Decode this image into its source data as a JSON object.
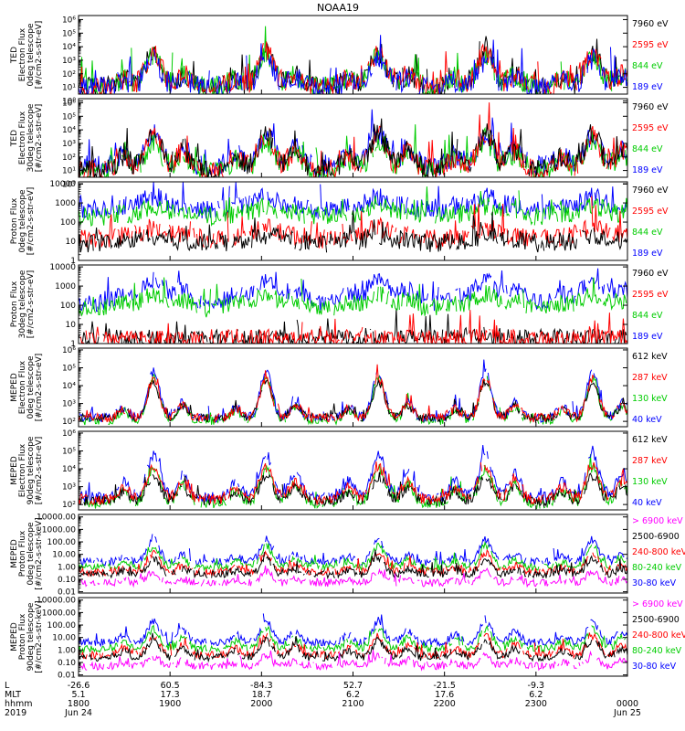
{
  "chart_data": {
    "title": "NOAA19",
    "type": "line",
    "x_range_hours": [
      18.0,
      24.0
    ],
    "footer": {
      "row_labels": [
        "L",
        "MLT",
        "hhmm",
        "2019"
      ],
      "ticks": [
        {
          "hour": 18.0,
          "L": "-26.6",
          "MLT": "5.1",
          "hhmm": "1800",
          "date": "Jun 24"
        },
        {
          "hour": 19.0,
          "L": "60.5",
          "MLT": "17.3",
          "hhmm": "1900",
          "date": ""
        },
        {
          "hour": 20.0,
          "L": "-84.3",
          "MLT": "18.7",
          "hhmm": "2000",
          "date": ""
        },
        {
          "hour": 21.0,
          "L": "52.7",
          "MLT": "6.2",
          "hhmm": "2100",
          "date": ""
        },
        {
          "hour": 22.0,
          "L": "-21.5",
          "MLT": "17.6",
          "hhmm": "2200",
          "date": ""
        },
        {
          "hour": 23.0,
          "L": "-9.3",
          "MLT": "6.2",
          "hhmm": "2300",
          "date": ""
        },
        {
          "hour": 24.0,
          "L": "",
          "MLT": "",
          "hhmm": "0000",
          "date": "Jun 25"
        }
      ]
    },
    "passes_hours": [
      18.82,
      20.05,
      21.28,
      22.45,
      23.62
    ],
    "panels": [
      {
        "ylabel": [
          "TED",
          "Electron Flux",
          "0deg telescope",
          "[#/cm2-s-str-eV]"
        ],
        "ylim_log": [
          0.5,
          6.3
        ],
        "yticks": [
          [
            "10⁰",
            0
          ],
          [
            "10¹",
            1
          ],
          [
            "10²",
            2
          ],
          [
            "10³",
            3
          ],
          [
            "10⁴",
            4
          ],
          [
            "10⁵",
            5
          ],
          [
            "10⁶",
            6
          ]
        ],
        "channels": [
          {
            "name": "7960 eV",
            "color": "#000000"
          },
          {
            "name": "2595 eV",
            "color": "#ff0000"
          },
          {
            "name": "844 eV",
            "color": "#00cc00"
          },
          {
            "name": "189 eV",
            "color": "#0000ff"
          }
        ],
        "draw_order": [
          0,
          2,
          1,
          3
        ],
        "bg": [
          1.0,
          1.0,
          1.1,
          1.0
        ],
        "peak": [
          2.6,
          2.7,
          2.2,
          2.0
        ],
        "width": 0.12,
        "noise": 0.8
      },
      {
        "ylabel": [
          "TED",
          "Electron Flux",
          "30deg telescope",
          "[#/cm2-s-str-eV]"
        ],
        "ylim_log": [
          0.5,
          6.3
        ],
        "yticks": [
          [
            "10⁰",
            0
          ],
          [
            "10¹",
            1
          ],
          [
            "10²",
            2
          ],
          [
            "10³",
            3
          ],
          [
            "10⁴",
            4
          ],
          [
            "10⁵",
            5
          ],
          [
            "10⁶",
            6
          ]
        ],
        "channels": [
          {
            "name": "7960 eV",
            "color": "#000000"
          },
          {
            "name": "2595 eV",
            "color": "#ff0000"
          },
          {
            "name": "844 eV",
            "color": "#00cc00"
          },
          {
            "name": "189 eV",
            "color": "#0000ff"
          }
        ],
        "draw_order": [
          3,
          2,
          1,
          0
        ],
        "bg": [
          1.0,
          1.0,
          1.0,
          1.3
        ],
        "peak": [
          2.8,
          2.7,
          2.2,
          2.4
        ],
        "width": 0.12,
        "noise": 0.8
      },
      {
        "ylabel": [
          "Proton Flux",
          "0deg telescope",
          "[#/cm2-s-str-eV]"
        ],
        "ylim_log": [
          0,
          4.1
        ],
        "yticks": [
          [
            "1",
            0
          ],
          [
            "10",
            1
          ],
          [
            "100",
            2
          ],
          [
            "1000",
            3
          ],
          [
            "10000",
            4
          ]
        ],
        "channels": [
          {
            "name": "7960 eV",
            "color": "#000000"
          },
          {
            "name": "2595 eV",
            "color": "#ff0000"
          },
          {
            "name": "844 eV",
            "color": "#00cc00"
          },
          {
            "name": "189 eV",
            "color": "#0000ff"
          }
        ],
        "draw_order": [
          3,
          2,
          1,
          0
        ],
        "bg": [
          0.9,
          1.1,
          2.3,
          2.6
        ],
        "peak": [
          0.4,
          0.6,
          0.5,
          0.7
        ],
        "width": 0.18,
        "noise": 0.5
      },
      {
        "ylabel": [
          "Proton Flux",
          "30deg telescope",
          "[#/cm2-s-str-eV]"
        ],
        "ylim_log": [
          0,
          4.1
        ],
        "yticks": [
          [
            "1",
            0
          ],
          [
            "10",
            1
          ],
          [
            "100",
            2
          ],
          [
            "1000",
            3
          ],
          [
            "10000",
            4
          ]
        ],
        "channels": [
          {
            "name": "7960 eV",
            "color": "#000000"
          },
          {
            "name": "2595 eV",
            "color": "#ff0000"
          },
          {
            "name": "844 eV",
            "color": "#00cc00"
          },
          {
            "name": "189 eV",
            "color": "#0000ff"
          }
        ],
        "draw_order": [
          0,
          1,
          3,
          2
        ],
        "bg": [
          0.3,
          0.3,
          1.8,
          2.1
        ],
        "peak": [
          0.0,
          0.0,
          0.8,
          1.2
        ],
        "width": 0.16,
        "noise": 0.45
      },
      {
        "ylabel": [
          "MEPED",
          "Electron Flux",
          "0deg telescope",
          "[#/cm2-s-str-eV]"
        ],
        "ylim_log": [
          1.7,
          6.1
        ],
        "yticks": [
          [
            "10²",
            2
          ],
          [
            "10³",
            3
          ],
          [
            "10⁴",
            4
          ],
          [
            "10⁵",
            5
          ],
          [
            "10⁶",
            6
          ]
        ],
        "channels": [
          {
            "name": "612 keV",
            "color": "#000000"
          },
          {
            "name": "287 keV",
            "color": "#ff0000"
          },
          {
            "name": "130 keV",
            "color": "#00cc00"
          },
          {
            "name": "40 keV",
            "color": "#0000ff"
          }
        ],
        "draw_order": [
          2,
          3,
          0,
          1
        ],
        "bg": [
          2.2,
          2.2,
          2.05,
          2.2
        ],
        "peak": [
          2.0,
          2.2,
          2.4,
          2.6
        ],
        "width": 0.09,
        "noise": 0.25
      },
      {
        "ylabel": [
          "MEPED",
          "Electron Flux",
          "90deg telescope",
          "[#/cm2-s-str-eV]"
        ],
        "ylim_log": [
          1.7,
          6.1
        ],
        "yticks": [
          [
            "10²",
            2
          ],
          [
            "10³",
            3
          ],
          [
            "10⁴",
            4
          ],
          [
            "10⁵",
            5
          ],
          [
            "10⁶",
            6
          ]
        ],
        "channels": [
          {
            "name": "612 keV",
            "color": "#000000"
          },
          {
            "name": "287 keV",
            "color": "#ff0000"
          },
          {
            "name": "130 keV",
            "color": "#00cc00"
          },
          {
            "name": "40 keV",
            "color": "#0000ff"
          }
        ],
        "draw_order": [
          2,
          3,
          0,
          1
        ],
        "bg": [
          2.2,
          2.3,
          2.05,
          2.4
        ],
        "peak": [
          1.4,
          1.8,
          2.0,
          2.4
        ],
        "width": 0.1,
        "noise": 0.3
      },
      {
        "ylabel": [
          "MEPED",
          "Proton Flux",
          "0deg telescope",
          "[#/cm2-s-str-keV]"
        ],
        "ylim_log": [
          -2.1,
          4.2
        ],
        "yticks": [
          [
            "0.01",
            -2
          ],
          [
            "0.10",
            -1
          ],
          [
            "1.00",
            0
          ],
          [
            "10.00",
            1
          ],
          [
            "100.00",
            2
          ],
          [
            "1000.00",
            3
          ],
          [
            "10000.00",
            4
          ]
        ],
        "channels": [
          {
            "name": "> 6900 keV",
            "color": "#ff00ff"
          },
          {
            "name": "2500-6900",
            "color": "#000000"
          },
          {
            "name": "240-800 keV",
            "color": "#ff0000"
          },
          {
            "name": "80-240 keV",
            "color": "#00cc00"
          },
          {
            "name": "30-80 keV",
            "color": "#0000ff"
          }
        ],
        "draw_order": [
          4,
          3,
          2,
          1,
          0
        ],
        "bg": [
          -1.3,
          -0.6,
          -0.4,
          0.0,
          0.4
        ],
        "peak": [
          0.9,
          1.3,
          1.5,
          1.7,
          1.8
        ],
        "width": 0.09,
        "noise": 0.3
      },
      {
        "ylabel": [
          "MEPED",
          "Proton Flux",
          "90deg telescope",
          "[#/cm2-s-str-keV]"
        ],
        "ylim_log": [
          -2.1,
          4.2
        ],
        "yticks": [
          [
            "0.01",
            -2
          ],
          [
            "0.10",
            -1
          ],
          [
            "1.00",
            0
          ],
          [
            "10.00",
            1
          ],
          [
            "100.00",
            2
          ],
          [
            "1000.00",
            3
          ],
          [
            "10000.00",
            4
          ]
        ],
        "channels": [
          {
            "name": "> 6900 keV",
            "color": "#ff00ff"
          },
          {
            "name": "2500-6900",
            "color": "#000000"
          },
          {
            "name": "240-800 keV",
            "color": "#ff0000"
          },
          {
            "name": "80-240 keV",
            "color": "#00cc00"
          },
          {
            "name": "30-80 keV",
            "color": "#0000ff"
          }
        ],
        "draw_order": [
          4,
          3,
          2,
          1,
          0
        ],
        "bg": [
          -1.3,
          -0.6,
          -0.4,
          0.1,
          0.6
        ],
        "peak": [
          0.8,
          1.4,
          1.5,
          1.6,
          1.7
        ],
        "width": 0.09,
        "noise": 0.3
      }
    ]
  }
}
